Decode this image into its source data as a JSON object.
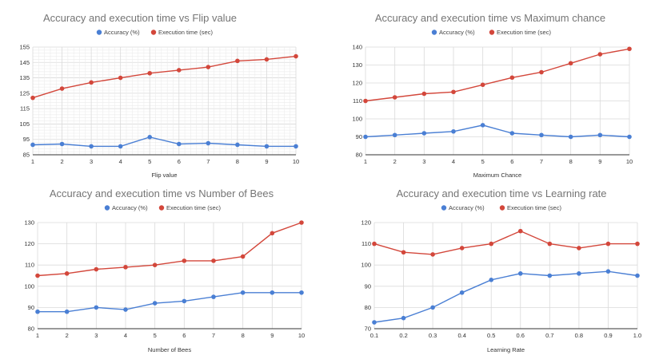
{
  "chart_data": [
    {
      "type": "line",
      "title": "Accuracy and execution time vs Flip value",
      "xlabel": "Flip value",
      "ylabel": "",
      "x": [
        1,
        2,
        3,
        4,
        5,
        6,
        7,
        8,
        9,
        10
      ],
      "yticks": [
        85,
        95,
        105,
        115,
        125,
        135,
        145,
        155
      ],
      "ylim": [
        85,
        155
      ],
      "minor_grid": true,
      "legend": "top",
      "series": [
        {
          "name": "Accuracy (%)",
          "color": "#4a7fd4",
          "values": [
            91.5,
            92,
            90.5,
            90.5,
            96.5,
            92,
            92.5,
            91.5,
            90.5,
            90.5
          ]
        },
        {
          "name": "Execution time (sec)",
          "color": "#d3473b",
          "values": [
            122,
            128,
            132,
            135,
            138,
            140,
            142,
            146,
            147,
            149
          ]
        }
      ]
    },
    {
      "type": "line",
      "title": "Accuracy and execution time vs Maximum chance",
      "xlabel": "Maximum Chance",
      "ylabel": "",
      "x": [
        1,
        2,
        3,
        4,
        5,
        6,
        7,
        8,
        9,
        10
      ],
      "yticks": [
        80,
        90,
        100,
        110,
        120,
        130,
        140
      ],
      "ylim": [
        80,
        140
      ],
      "minor_grid": false,
      "legend": "top",
      "series": [
        {
          "name": "Accuracy (%)",
          "color": "#4a7fd4",
          "values": [
            90,
            91,
            92,
            93,
            96.5,
            92,
            91,
            90,
            91,
            90
          ]
        },
        {
          "name": "Execution time (sec)",
          "color": "#d3473b",
          "values": [
            110,
            112,
            114,
            115,
            119,
            123,
            126,
            131,
            136,
            139
          ]
        }
      ]
    },
    {
      "type": "line",
      "title": "Accuracy and execution time vs Number of Bees",
      "xlabel": "Number of Bees",
      "ylabel": "",
      "x": [
        1,
        2,
        3,
        4,
        5,
        6,
        7,
        8,
        9,
        10
      ],
      "yticks": [
        80,
        90,
        100,
        110,
        120,
        130
      ],
      "ylim": [
        80,
        130
      ],
      "minor_grid": false,
      "legend": "top",
      "series": [
        {
          "name": "Accuracy (%)",
          "color": "#4a7fd4",
          "values": [
            88,
            88,
            90,
            89,
            92,
            93,
            95,
            97,
            97,
            97
          ]
        },
        {
          "name": "Execution time (sec)",
          "color": "#d3473b",
          "values": [
            105,
            106,
            108,
            109,
            110,
            112,
            112,
            114,
            125,
            130
          ]
        }
      ]
    },
    {
      "type": "line",
      "title": "Accuracy and execution time vs Learning rate",
      "xlabel": "Learning Rate",
      "ylabel": "",
      "x": [
        "0.1",
        "0.2",
        "0.3",
        "0.4",
        "0.5",
        "0.6",
        "0.7",
        "0.8",
        "0.9",
        "1.0"
      ],
      "yticks": [
        70,
        80,
        90,
        100,
        110,
        120
      ],
      "ylim": [
        70,
        120
      ],
      "minor_grid": false,
      "legend": "top",
      "series": [
        {
          "name": "Accuracy (%)",
          "color": "#4a7fd4",
          "values": [
            73,
            75,
            80,
            87,
            93,
            96,
            95,
            96,
            97,
            95
          ]
        },
        {
          "name": "Execution time (sec)",
          "color": "#d3473b",
          "values": [
            110,
            106,
            105,
            108,
            110,
            116,
            110,
            108,
            110,
            110
          ]
        }
      ]
    }
  ]
}
